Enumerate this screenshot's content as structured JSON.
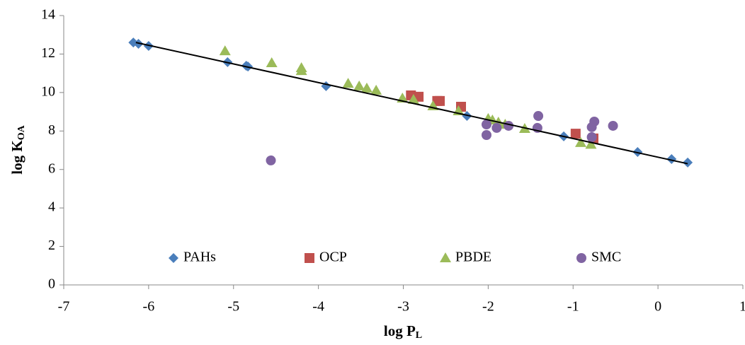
{
  "chart_data": {
    "type": "scatter",
    "xlabel": {
      "main": "log P",
      "sub": "L"
    },
    "ylabel": {
      "main": "log K",
      "sub": "OA"
    },
    "xlim": [
      -7,
      1
    ],
    "xticks": [
      -7,
      -6,
      -5,
      -4,
      -3,
      -2,
      -1,
      0,
      1
    ],
    "ylim": [
      0,
      14
    ],
    "yticks": [
      0,
      2,
      4,
      6,
      8,
      10,
      12,
      14
    ],
    "legend": "bottom",
    "series": [
      {
        "name": "PAHs",
        "color": "#4a7ebb",
        "marker": "diamond",
        "x": [
          -6.18,
          -6.12,
          -6.0,
          -5.07,
          -4.85,
          -4.83,
          -3.91,
          -2.25,
          -1.11,
          -0.24,
          0.16,
          0.35
        ],
        "values": [
          12.6,
          12.53,
          12.42,
          11.58,
          11.39,
          11.35,
          10.33,
          8.78,
          7.72,
          6.91,
          6.54,
          6.36
        ]
      },
      {
        "name": "OCP",
        "color": "#c0504d",
        "marker": "square",
        "x": [
          -2.91,
          -2.82,
          -2.6,
          -2.57,
          -2.32,
          -0.97,
          -0.76
        ],
        "values": [
          9.85,
          9.78,
          9.56,
          9.56,
          9.26,
          7.86,
          7.61
        ]
      },
      {
        "name": "PBDE",
        "color": "#9bbb59",
        "marker": "triangle",
        "x": [
          -5.1,
          -4.55,
          -4.2,
          -4.2,
          -3.65,
          -3.52,
          -3.43,
          -3.32,
          -3.01,
          -2.88,
          -2.65,
          -2.35,
          -2.0,
          -1.95,
          -1.88,
          -1.8,
          -1.57,
          -0.91,
          -0.79
        ],
        "values": [
          12.16,
          11.54,
          11.28,
          11.13,
          10.47,
          10.33,
          10.22,
          10.11,
          9.7,
          9.63,
          9.3,
          9.04,
          8.64,
          8.56,
          8.45,
          8.34,
          8.12,
          7.39,
          7.3
        ]
      },
      {
        "name": "SMC",
        "color": "#8064a2",
        "marker": "circle",
        "x": [
          -4.56,
          -2.02,
          -2.02,
          -1.9,
          -1.76,
          -1.41,
          -1.42,
          -0.75,
          -0.78,
          -0.78,
          -0.53
        ],
        "values": [
          6.47,
          8.34,
          7.79,
          8.16,
          8.27,
          8.78,
          8.16,
          8.49,
          8.2,
          7.68,
          8.27
        ]
      }
    ],
    "trendline": {
      "color": "#000000",
      "x": [
        -6.15,
        0.35
      ],
      "values": [
        12.6,
        6.3
      ]
    }
  }
}
